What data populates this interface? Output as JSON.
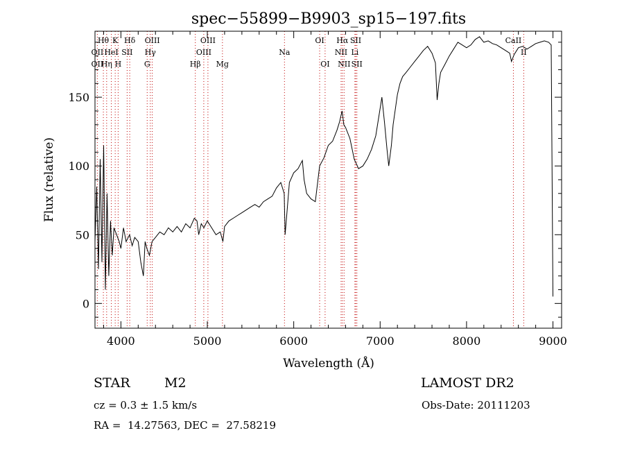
{
  "chart_data": {
    "type": "line",
    "title": "spec−55899−B9903_sp15−197.fits",
    "xlabel": "Wavelength (Å)",
    "ylabel": "Flux (relative)",
    "xlim": [
      3700,
      9100
    ],
    "ylim": [
      -18,
      198
    ],
    "xticks": [
      4000,
      5000,
      6000,
      7000,
      8000,
      9000
    ],
    "yticks": [
      0,
      50,
      100,
      150
    ],
    "xtick_labels": [
      "4000",
      "5000",
      "6000",
      "7000",
      "8000",
      "9000"
    ],
    "ytick_labels": [
      "0",
      "50",
      "100",
      "150"
    ],
    "series": [
      {
        "x": [
          3700,
          3720,
          3740,
          3760,
          3780,
          3800,
          3820,
          3840,
          3860,
          3880,
          3900,
          3920,
          3950,
          3980,
          4000,
          4030,
          4060,
          4100,
          4130,
          4160,
          4200,
          4230,
          4260,
          4280,
          4300,
          4330,
          4360,
          4400,
          4450,
          4500,
          4550,
          4600,
          4650,
          4700,
          4750,
          4800,
          4850,
          4880,
          4900,
          4930,
          4960,
          5000,
          5050,
          5100,
          5150,
          5180,
          5200,
          5250,
          5300,
          5350,
          5400,
          5450,
          5500,
          5550,
          5600,
          5650,
          5700,
          5750,
          5800,
          5850,
          5890,
          5900,
          5920,
          5950,
          6000,
          6050,
          6100,
          6120,
          6150,
          6200,
          6250,
          6300,
          6350,
          6400,
          6450,
          6500,
          6530,
          6560,
          6580,
          6600,
          6650,
          6700,
          6750,
          6800,
          6850,
          6900,
          6950,
          7000,
          7020,
          7050,
          7080,
          7100,
          7130,
          7150,
          7200,
          7230,
          7260,
          7300,
          7350,
          7400,
          7450,
          7500,
          7550,
          7600,
          7640,
          7660,
          7680,
          7700,
          7750,
          7800,
          7850,
          7900,
          7950,
          8000,
          8050,
          8100,
          8150,
          8200,
          8250,
          8300,
          8350,
          8400,
          8450,
          8500,
          8520,
          8550,
          8600,
          8650,
          8700,
          8750,
          8800,
          8850,
          8900,
          8950,
          8980,
          9000
        ],
        "values": [
          45,
          85,
          25,
          105,
          30,
          115,
          10,
          80,
          20,
          60,
          35,
          55,
          50,
          45,
          40,
          55,
          45,
          50,
          42,
          48,
          45,
          30,
          20,
          45,
          40,
          35,
          45,
          48,
          52,
          50,
          55,
          52,
          56,
          52,
          58,
          55,
          62,
          60,
          50,
          58,
          55,
          60,
          55,
          50,
          52,
          45,
          56,
          60,
          62,
          64,
          66,
          68,
          70,
          72,
          70,
          74,
          76,
          78,
          84,
          88,
          80,
          50,
          65,
          88,
          95,
          98,
          104,
          90,
          80,
          76,
          74,
          100,
          106,
          115,
          118,
          126,
          132,
          140,
          130,
          128,
          120,
          105,
          98,
          100,
          105,
          112,
          122,
          142,
          150,
          132,
          112,
          100,
          115,
          130,
          152,
          160,
          165,
          168,
          172,
          176,
          180,
          184,
          187,
          182,
          175,
          148,
          160,
          168,
          174,
          180,
          185,
          190,
          188,
          186,
          188,
          192,
          194,
          190,
          191,
          189,
          188,
          186,
          184,
          182,
          176,
          181,
          186,
          187,
          185,
          187,
          189,
          190,
          191,
          190,
          188,
          5
        ]
      }
    ],
    "emission_lines": [
      {
        "label": "Hθ",
        "x": 3797,
        "row": 0
      },
      {
        "label": "K",
        "x": 3934,
        "row": 0
      },
      {
        "label": "Hδ",
        "x": 4102,
        "row": 0
      },
      {
        "label": "OIII",
        "x": 4363,
        "row": 0
      },
      {
        "label": "OIII",
        "x": 5007,
        "row": 0
      },
      {
        "label": "OI",
        "x": 6300,
        "row": 0
      },
      {
        "label": "Hα",
        "x": 6563,
        "row": 0
      },
      {
        "label": "SII",
        "x": 6717,
        "row": 0
      },
      {
        "label": "CaII",
        "x": 8542,
        "row": 0
      },
      {
        "label": "OII",
        "x": 3727,
        "row": 1
      },
      {
        "label": "HeI",
        "x": 3889,
        "row": 1
      },
      {
        "label": "SII",
        "x": 4072,
        "row": 1
      },
      {
        "label": "Hγ",
        "x": 4340,
        "row": 1
      },
      {
        "label": "OIII",
        "x": 4959,
        "row": 1
      },
      {
        "label": "Na",
        "x": 5893,
        "row": 1
      },
      {
        "label": "NII",
        "x": 6548,
        "row": 1
      },
      {
        "label": "Li",
        "x": 6708,
        "row": 1
      },
      {
        "label": "II",
        "x": 8662,
        "row": 1
      },
      {
        "label": "OII",
        "x": 3727,
        "row": 2
      },
      {
        "label": "Hη",
        "x": 3835,
        "row": 2
      },
      {
        "label": "H",
        "x": 3968,
        "row": 2
      },
      {
        "label": "G",
        "x": 4304,
        "row": 2
      },
      {
        "label": "Hβ",
        "x": 4861,
        "row": 2
      },
      {
        "label": "Mg",
        "x": 5175,
        "row": 2
      },
      {
        "label": "OI",
        "x": 6363,
        "row": 2
      },
      {
        "label": "NII",
        "x": 6583,
        "row": 2
      },
      {
        "label": "SII",
        "x": 6731,
        "row": 2
      }
    ]
  },
  "info": {
    "object_class": "STAR",
    "subclass": "M2",
    "survey": "LAMOST DR2",
    "velocity": "cz = 0.3 ± 1.5 km/s",
    "obs_date": "Obs-Date: 20111203",
    "coords": "RA =  14.27563, DEC =  27.58219"
  }
}
